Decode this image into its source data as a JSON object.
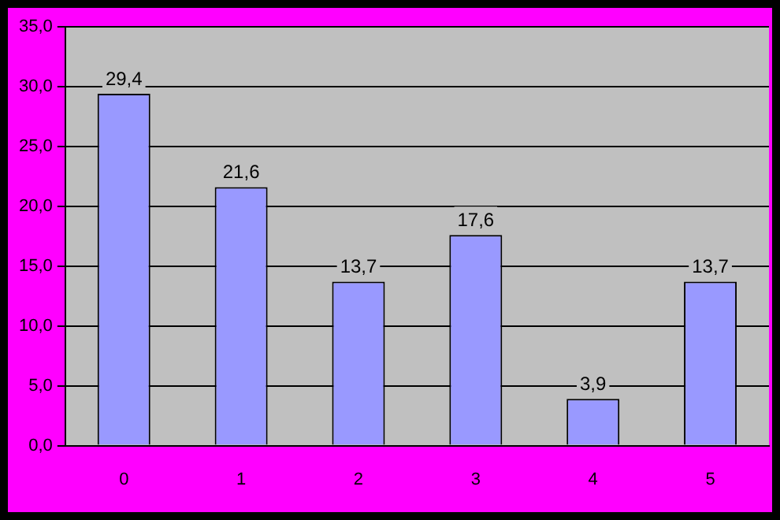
{
  "chart_data": {
    "type": "bar",
    "categories": [
      "0",
      "1",
      "2",
      "3",
      "4",
      "5"
    ],
    "values": [
      29.4,
      21.6,
      13.7,
      17.6,
      3.9,
      13.7
    ],
    "value_labels": [
      "29,4",
      "21,6",
      "13,7",
      "17,6",
      "3,9",
      "13,7"
    ],
    "color": "#9999ff",
    "ylim": [
      0,
      35
    ],
    "yticks": [
      {
        "value": 0,
        "label": "0,0"
      },
      {
        "value": 5,
        "label": "5,0"
      },
      {
        "value": 10,
        "label": "10,0"
      },
      {
        "value": 15,
        "label": "15,0"
      },
      {
        "value": 20,
        "label": "20,0"
      },
      {
        "value": 25,
        "label": "25,0"
      },
      {
        "value": 30,
        "label": "30,0"
      },
      {
        "value": 35,
        "label": "35,0"
      }
    ],
    "grid": "y",
    "legend": false
  }
}
